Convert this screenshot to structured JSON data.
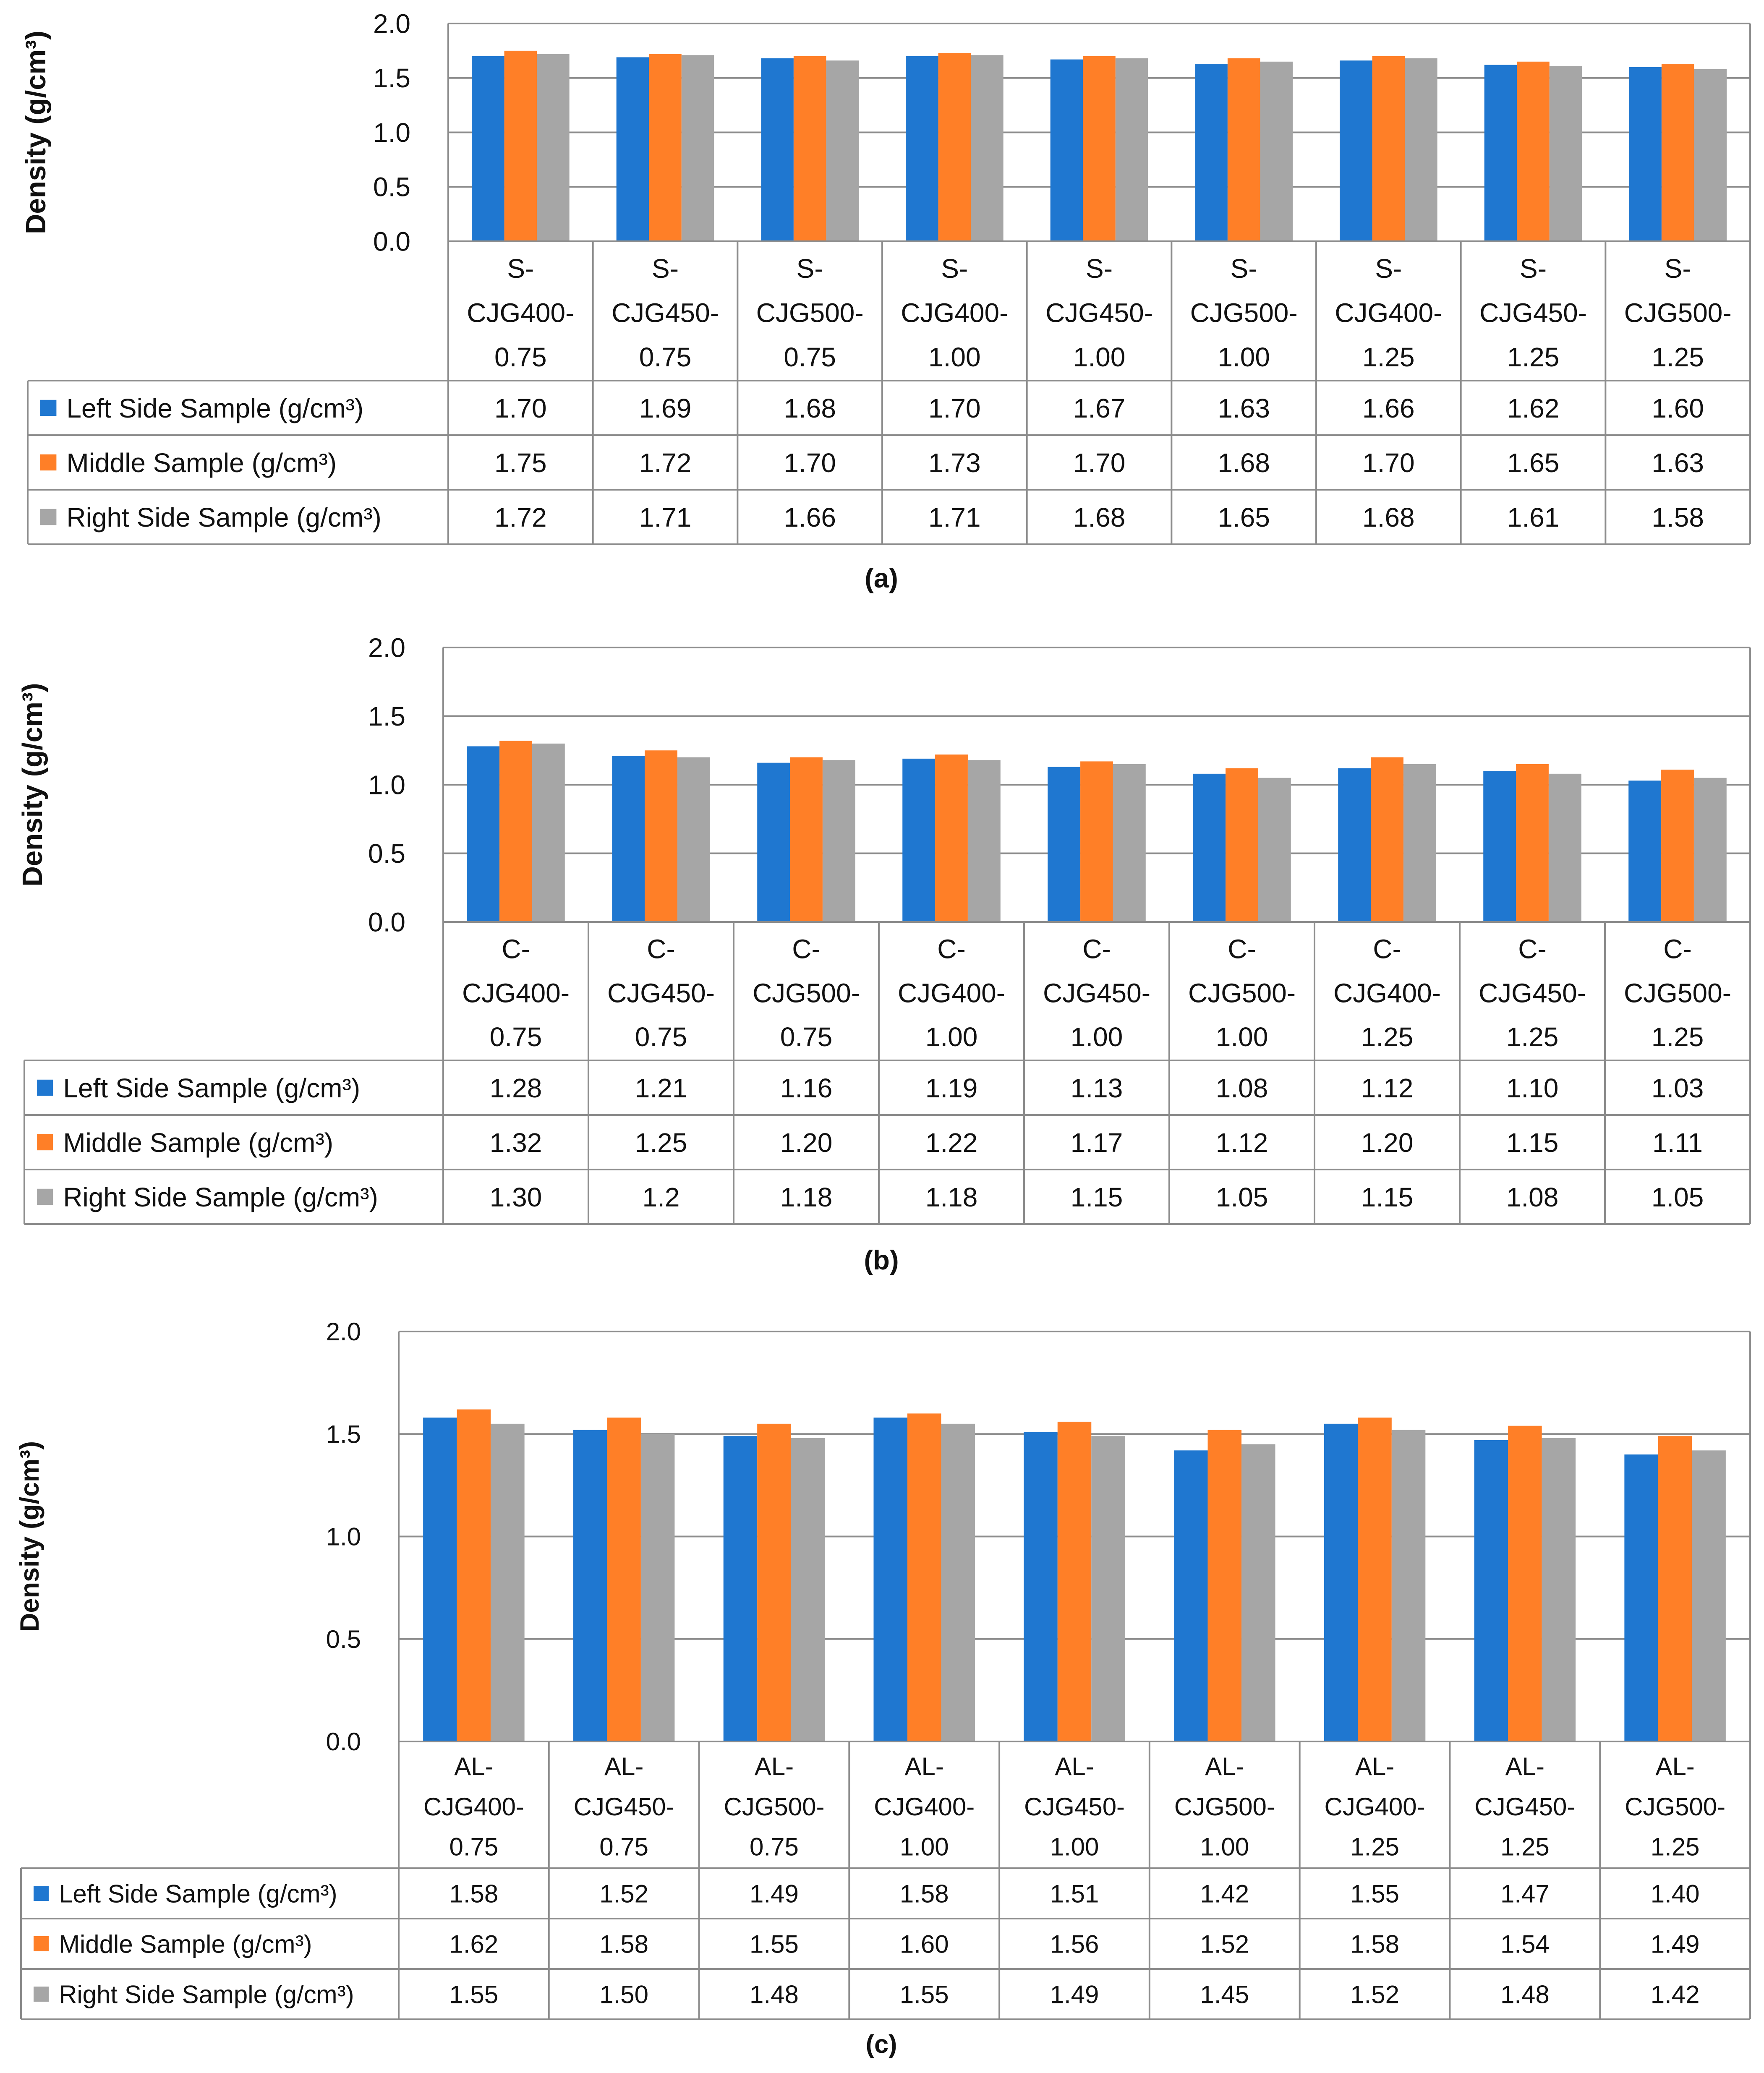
{
  "colors": {
    "left": "#1f77d0",
    "middle": "#ff7f27",
    "right": "#a6a6a6",
    "grid": "#8c8c8c",
    "text": "#111111"
  },
  "chart_data": [
    {
      "type": "bar",
      "panel_label": "(a)",
      "ylabel": "Density (g/cm³)",
      "ylim": [
        0,
        2.0
      ],
      "yticks": [
        "0.0",
        "0.5",
        "1.0",
        "1.5",
        "2.0"
      ],
      "grid": true,
      "legend": "data-table",
      "categories": [
        [
          "S-",
          "CJG400-",
          "0.75"
        ],
        [
          "S-",
          "CJG450-",
          "0.75"
        ],
        [
          "S-",
          "CJG500-",
          "0.75"
        ],
        [
          "S-",
          "CJG400-",
          "1.00"
        ],
        [
          "S-",
          "CJG450-",
          "1.00"
        ],
        [
          "S-",
          "CJG500-",
          "1.00"
        ],
        [
          "S-",
          "CJG400-",
          "1.25"
        ],
        [
          "S-",
          "CJG450-",
          "1.25"
        ],
        [
          "S-",
          "CJG500-",
          "1.25"
        ]
      ],
      "series": [
        {
          "name": "Left Side Sample (g/cm³)",
          "color_key": "left",
          "values": [
            1.7,
            1.69,
            1.68,
            1.7,
            1.67,
            1.63,
            1.66,
            1.62,
            1.6
          ],
          "labels": [
            "1.70",
            "1.69",
            "1.68",
            "1.70",
            "1.67",
            "1.63",
            "1.66",
            "1.62",
            "1.60"
          ]
        },
        {
          "name": "Middle Sample (g/cm³)",
          "color_key": "middle",
          "values": [
            1.75,
            1.72,
            1.7,
            1.73,
            1.7,
            1.68,
            1.7,
            1.65,
            1.63
          ],
          "labels": [
            "1.75",
            "1.72",
            "1.70",
            "1.73",
            "1.70",
            "1.68",
            "1.70",
            "1.65",
            "1.63"
          ]
        },
        {
          "name": "Right Side Sample (g/cm³)",
          "color_key": "right",
          "values": [
            1.72,
            1.71,
            1.66,
            1.71,
            1.68,
            1.65,
            1.68,
            1.61,
            1.58
          ],
          "labels": [
            "1.72",
            "1.71",
            "1.66",
            "1.71",
            "1.68",
            "1.65",
            "1.68",
            "1.61",
            "1.58"
          ]
        }
      ]
    },
    {
      "type": "bar",
      "panel_label": "(b)",
      "ylabel": "Density (g/cm³)",
      "ylim": [
        0,
        2.0
      ],
      "yticks": [
        "0.0",
        "0.5",
        "1.0",
        "1.5",
        "2.0"
      ],
      "grid": true,
      "legend": "data-table",
      "categories": [
        [
          "C-",
          "CJG400-",
          "0.75"
        ],
        [
          "C-",
          "CJG450-",
          "0.75"
        ],
        [
          "C-",
          "CJG500-",
          "0.75"
        ],
        [
          "C-",
          "CJG400-",
          "1.00"
        ],
        [
          "C-",
          "CJG450-",
          "1.00"
        ],
        [
          "C-",
          "CJG500-",
          "1.00"
        ],
        [
          "C-",
          "CJG400-",
          "1.25"
        ],
        [
          "C-",
          "CJG450-",
          "1.25"
        ],
        [
          "C-",
          "CJG500-",
          "1.25"
        ]
      ],
      "series": [
        {
          "name": "Left Side Sample (g/cm³)",
          "color_key": "left",
          "values": [
            1.28,
            1.21,
            1.16,
            1.19,
            1.13,
            1.08,
            1.12,
            1.1,
            1.03
          ],
          "labels": [
            "1.28",
            "1.21",
            "1.16",
            "1.19",
            "1.13",
            "1.08",
            "1.12",
            "1.10",
            "1.03"
          ]
        },
        {
          "name": "Middle Sample (g/cm³)",
          "color_key": "middle",
          "values": [
            1.32,
            1.25,
            1.2,
            1.22,
            1.17,
            1.12,
            1.2,
            1.15,
            1.11
          ],
          "labels": [
            "1.32",
            "1.25",
            "1.20",
            "1.22",
            "1.17",
            "1.12",
            "1.20",
            "1.15",
            "1.11"
          ]
        },
        {
          "name": "Right Side Sample (g/cm³)",
          "color_key": "right",
          "values": [
            1.3,
            1.2,
            1.18,
            1.18,
            1.15,
            1.05,
            1.15,
            1.08,
            1.05
          ],
          "labels": [
            "1.30",
            "1.2",
            "1.18",
            "1.18",
            "1.15",
            "1.05",
            "1.15",
            "1.08",
            "1.05"
          ]
        }
      ]
    },
    {
      "type": "bar",
      "panel_label": "(c)",
      "ylabel": "Density (g/cm³)",
      "ylim": [
        0,
        2.0
      ],
      "yticks": [
        "0.0",
        "0.5",
        "1.0",
        "1.5",
        "2.0"
      ],
      "grid": true,
      "legend": "data-table",
      "categories": [
        [
          "AL-",
          "CJG400-",
          "0.75"
        ],
        [
          "AL-",
          "CJG450-",
          "0.75"
        ],
        [
          "AL-",
          "CJG500-",
          "0.75"
        ],
        [
          "AL-",
          "CJG400-",
          "1.00"
        ],
        [
          "AL-",
          "CJG450-",
          "1.00"
        ],
        [
          "AL-",
          "CJG500-",
          "1.00"
        ],
        [
          "AL-",
          "CJG400-",
          "1.25"
        ],
        [
          "AL-",
          "CJG450-",
          "1.25"
        ],
        [
          "AL-",
          "CJG500-",
          "1.25"
        ]
      ],
      "series": [
        {
          "name": "Left Side Sample (g/cm³)",
          "color_key": "left",
          "values": [
            1.58,
            1.52,
            1.49,
            1.58,
            1.51,
            1.42,
            1.55,
            1.47,
            1.4
          ],
          "labels": [
            "1.58",
            "1.52",
            "1.49",
            "1.58",
            "1.51",
            "1.42",
            "1.55",
            "1.47",
            "1.40"
          ]
        },
        {
          "name": "Middle Sample (g/cm³)",
          "color_key": "middle",
          "values": [
            1.62,
            1.58,
            1.55,
            1.6,
            1.56,
            1.52,
            1.58,
            1.54,
            1.49
          ],
          "labels": [
            "1.62",
            "1.58",
            "1.55",
            "1.60",
            "1.56",
            "1.52",
            "1.58",
            "1.54",
            "1.49"
          ]
        },
        {
          "name": "Right Side Sample (g/cm³)",
          "color_key": "right",
          "values": [
            1.55,
            1.5,
            1.48,
            1.55,
            1.49,
            1.45,
            1.52,
            1.48,
            1.42
          ],
          "labels": [
            "1.55",
            "1.50",
            "1.48",
            "1.55",
            "1.49",
            "1.45",
            "1.52",
            "1.48",
            "1.42"
          ]
        }
      ]
    }
  ]
}
